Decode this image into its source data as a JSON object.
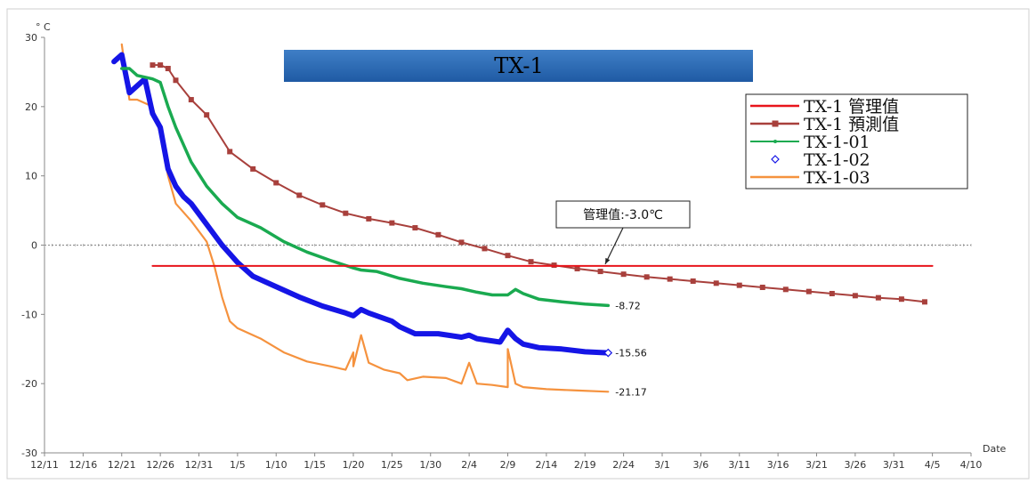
{
  "chart_data": {
    "type": "line",
    "title": "TX-1",
    "ylabel": "° C",
    "xlabel": "Date",
    "ylim": [
      -30,
      30
    ],
    "yticks": [
      30,
      20,
      10,
      0,
      -10,
      -20,
      -30
    ],
    "xlim": [
      "12/11",
      "4/10"
    ],
    "xticks": [
      "12/11",
      "12/16",
      "12/21",
      "12/26",
      "12/31",
      "1/5",
      "1/10",
      "1/15",
      "1/20",
      "1/25",
      "1/30",
      "2/4",
      "2/9",
      "2/14",
      "2/19",
      "2/24",
      "3/1",
      "3/6",
      "3/11",
      "3/16",
      "3/21",
      "3/26",
      "3/31",
      "4/5",
      "4/10"
    ],
    "legend_position": "top-right",
    "reference_line": {
      "value": 0,
      "style": "dotted"
    },
    "callout": {
      "text": "管理值:-3.0℃"
    },
    "colors": {
      "管理値": "#e8141b",
      "予測値": "#a8403c",
      "01": "#1aaa50",
      "02": "#1515e6",
      "03": "#f5923e",
      "title_bar": "#2a68b2",
      "zero_line": "#888888"
    },
    "series": [
      {
        "name": "TX-1 管理值",
        "x": [
          "12/25",
          "4/5"
        ],
        "y": [
          -3.0,
          -3.0
        ]
      },
      {
        "name": "TX-1 預測值",
        "x": [
          "12/25",
          "12/26",
          "12/27",
          "12/28",
          "12/30",
          "1/1",
          "1/4",
          "1/7",
          "1/10",
          "1/13",
          "1/16",
          "1/19",
          "1/22",
          "1/25",
          "1/28",
          "1/31",
          "2/3",
          "2/6",
          "2/9",
          "2/12",
          "2/15",
          "2/18",
          "2/21",
          "2/24",
          "2/27",
          "3/2",
          "3/5",
          "3/8",
          "3/11",
          "3/14",
          "3/17",
          "3/20",
          "3/23",
          "3/26",
          "3/29",
          "4/1",
          "4/4"
        ],
        "y": [
          26.0,
          26.0,
          25.5,
          23.8,
          21.0,
          18.8,
          13.5,
          11.0,
          9.0,
          7.2,
          5.8,
          4.6,
          3.8,
          3.2,
          2.5,
          1.5,
          0.4,
          -0.5,
          -1.5,
          -2.4,
          -2.9,
          -3.4,
          -3.8,
          -4.2,
          -4.6,
          -4.9,
          -5.2,
          -5.5,
          -5.8,
          -6.1,
          -6.4,
          -6.7,
          -7.0,
          -7.3,
          -7.6,
          -7.8,
          -8.2
        ]
      },
      {
        "name": "TX-1-01",
        "x": [
          "12/21",
          "12/22",
          "12/23",
          "12/25",
          "12/26",
          "12/27",
          "12/28",
          "12/30",
          "1/1",
          "1/3",
          "1/5",
          "1/8",
          "1/11",
          "1/14",
          "1/17",
          "1/20",
          "1/21",
          "1/23",
          "1/26",
          "1/29",
          "2/1",
          "2/3",
          "2/5",
          "2/7",
          "2/9",
          "2/10",
          "2/11",
          "2/13",
          "2/16",
          "2/19",
          "2/22"
        ],
        "y": [
          25.5,
          25.5,
          24.5,
          24.0,
          23.5,
          20.0,
          17.0,
          12.0,
          8.5,
          6.0,
          4.0,
          2.5,
          0.5,
          -1.0,
          -2.2,
          -3.3,
          -3.6,
          -3.8,
          -4.8,
          -5.5,
          -6.0,
          -6.3,
          -6.8,
          -7.2,
          -7.2,
          -6.4,
          -7.0,
          -7.8,
          -8.2,
          -8.5,
          -8.72
        ]
      },
      {
        "name": "TX-1-02",
        "x": [
          "12/20",
          "12/21",
          "12/22",
          "12/23",
          "12/24",
          "12/25",
          "12/26",
          "12/27",
          "12/28",
          "12/29",
          "12/30",
          "1/1",
          "1/3",
          "1/5",
          "1/7",
          "1/10",
          "1/13",
          "1/16",
          "1/19",
          "1/20",
          "1/21",
          "1/22",
          "1/25",
          "1/26",
          "1/28",
          "1/31",
          "2/3",
          "2/4",
          "2/5",
          "2/8",
          "2/9",
          "2/10",
          "2/11",
          "2/13",
          "2/16",
          "2/19",
          "2/22"
        ],
        "y": [
          26.5,
          27.5,
          22.0,
          23.0,
          24.0,
          19.0,
          17.0,
          11.0,
          8.5,
          7.0,
          6.0,
          3.0,
          0.0,
          -2.5,
          -4.5,
          -6.0,
          -7.5,
          -8.8,
          -9.8,
          -10.2,
          -9.3,
          -9.8,
          -11.0,
          -11.8,
          -12.8,
          -12.8,
          -13.3,
          -13.0,
          -13.5,
          -14.0,
          -12.3,
          -13.5,
          -14.3,
          -14.8,
          -15.0,
          -15.4,
          -15.56
        ]
      },
      {
        "name": "TX-1-03",
        "x": [
          "12/21",
          "12/22",
          "12/23",
          "12/25",
          "12/26",
          "12/27",
          "12/28",
          "12/30",
          "1/1",
          "1/2",
          "1/3",
          "1/4",
          "1/5",
          "1/8",
          "1/11",
          "1/14",
          "1/17",
          "1/19",
          "1/20",
          "1/20",
          "1/21",
          "1/22",
          "1/24",
          "1/26",
          "1/27",
          "1/29",
          "2/1",
          "2/3",
          "2/4",
          "2/5",
          "2/7",
          "2/9",
          "2/9",
          "2/10",
          "2/11",
          "2/14",
          "2/18",
          "2/22"
        ],
        "y": [
          29.0,
          21.0,
          21.0,
          20.0,
          16.0,
          10.0,
          6.0,
          3.5,
          0.5,
          -3.0,
          -7.5,
          -11.0,
          -12.0,
          -13.5,
          -15.5,
          -16.8,
          -17.5,
          -18.0,
          -15.5,
          -17.5,
          -13.0,
          -17.0,
          -18.0,
          -18.5,
          -19.5,
          -19.0,
          -19.2,
          -20.0,
          -17.0,
          -20.0,
          -20.2,
          -20.5,
          -15.0,
          -20.0,
          -20.5,
          -20.8,
          -21.0,
          -21.17
        ]
      }
    ],
    "end_labels": [
      {
        "series": "TX-1-01",
        "text": "-8.72"
      },
      {
        "series": "TX-1-02",
        "text": "-15.56"
      },
      {
        "series": "TX-1-03",
        "text": "-21.17"
      }
    ]
  }
}
